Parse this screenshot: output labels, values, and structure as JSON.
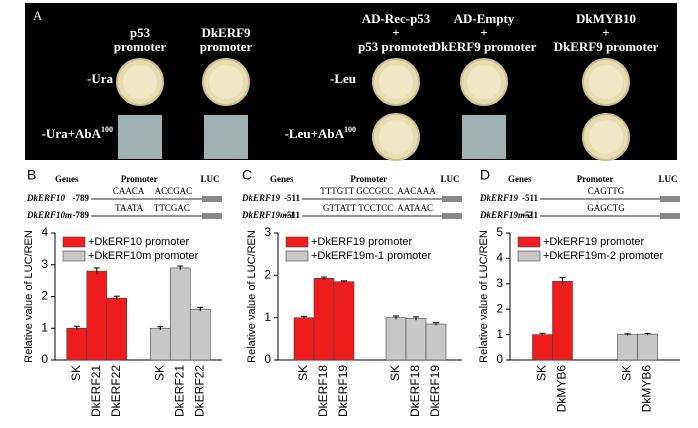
{
  "panel_a": {
    "letter": "A",
    "columns": [
      [
        "p53",
        "promoter"
      ],
      [
        "DkERF9",
        "promoter"
      ],
      [
        "AD-Rec-p53",
        "+",
        "p53 promoter"
      ],
      [
        "AD-Empty",
        "+",
        "DkERF9 promoter"
      ],
      [
        "DkMYB10",
        "+",
        "DkERF9 promoter"
      ]
    ],
    "rows_left": [
      {
        "label": "-Ura"
      },
      {
        "label": "-Ura+AbA",
        "sup": "100"
      }
    ],
    "rows_right": [
      {
        "label": "-Leu"
      },
      {
        "label": "-Leu+AbA",
        "sup": "100"
      }
    ]
  },
  "promoters": [
    {
      "genes": "Genes",
      "promoter": "Promoter",
      "luc": "LUC",
      "rows": [
        {
          "gene": "DkERF10",
          "pos": "-789",
          "seq": "CAACA     ACCGAC"
        },
        {
          "gene": "DkERF10m",
          "pos": "-789",
          "seq": "TAATA     TTCGAC"
        }
      ]
    },
    {
      "genes": "Genes",
      "promoter": "Promoter",
      "luc": "LUC",
      "rows": [
        {
          "gene": "DkERF19",
          "pos": "-511",
          "seq": "TTTGTT GCCGCC  AACAAA"
        },
        {
          "gene": "DkERF19m-1",
          "pos": "-511",
          "seq": "GTTATT TCCTCC  AATAAC"
        }
      ]
    },
    {
      "genes": "Genes",
      "promoter": "Promoter",
      "luc": "LUC",
      "rows": [
        {
          "gene": "DkERF19",
          "pos": "-511",
          "seq": "CAGTTG"
        },
        {
          "gene": "DkERF19m-2",
          "pos": "-511",
          "seq": "GAGCTG"
        }
      ]
    }
  ],
  "chart_data": [
    {
      "type": "bar",
      "panel": "B",
      "ylabel": "Relative value of LUC/REN",
      "categories": [
        "SK",
        "DkERF21",
        "DkERF22"
      ],
      "series": [
        {
          "name": "+DkERF10 promoter",
          "color": "#ee1c1c",
          "values": [
            1,
            2.8,
            1.95
          ],
          "errors": [
            0.06,
            0.1,
            0.06
          ]
        },
        {
          "name": "+DkERF10m promoter",
          "color": "#c8c8c8",
          "values": [
            1,
            2.9,
            1.6
          ],
          "errors": [
            0.05,
            0.06,
            0.06
          ]
        }
      ],
      "ylim": [
        0,
        4
      ],
      "yticks": [
        0,
        1,
        2,
        3,
        4
      ]
    },
    {
      "type": "bar",
      "panel": "C",
      "ylabel": "Relative value of LUC/REN",
      "categories": [
        "SK",
        "DkERF18",
        "DkERF19"
      ],
      "series": [
        {
          "name": "+DkERF19 promoter",
          "color": "#ee1c1c",
          "values": [
            1,
            1.93,
            1.85
          ],
          "errors": [
            0.03,
            0.03,
            0.02
          ]
        },
        {
          "name": "+DkERF19m-1 promoter",
          "color": "#c8c8c8",
          "values": [
            1,
            0.98,
            0.85
          ],
          "errors": [
            0.04,
            0.04,
            0.03
          ]
        }
      ],
      "ylim": [
        0,
        3
      ],
      "yticks": [
        0,
        1,
        2,
        3
      ]
    },
    {
      "type": "bar",
      "panel": "D",
      "ylabel": "Relative value of LUC/REN",
      "categories": [
        "SK",
        "DkMYB6"
      ],
      "series": [
        {
          "name": "+DkERF19 promoter",
          "color": "#ee1c1c",
          "values": [
            1,
            3.1
          ],
          "errors": [
            0.05,
            0.15
          ]
        },
        {
          "name": "+DkERF19m-2 promoter",
          "color": "#c8c8c8",
          "values": [
            1,
            1.02
          ],
          "errors": [
            0.03,
            0.03
          ]
        }
      ],
      "ylim": [
        0,
        5
      ],
      "yticks": [
        0,
        1,
        2,
        3,
        4,
        5
      ]
    }
  ]
}
